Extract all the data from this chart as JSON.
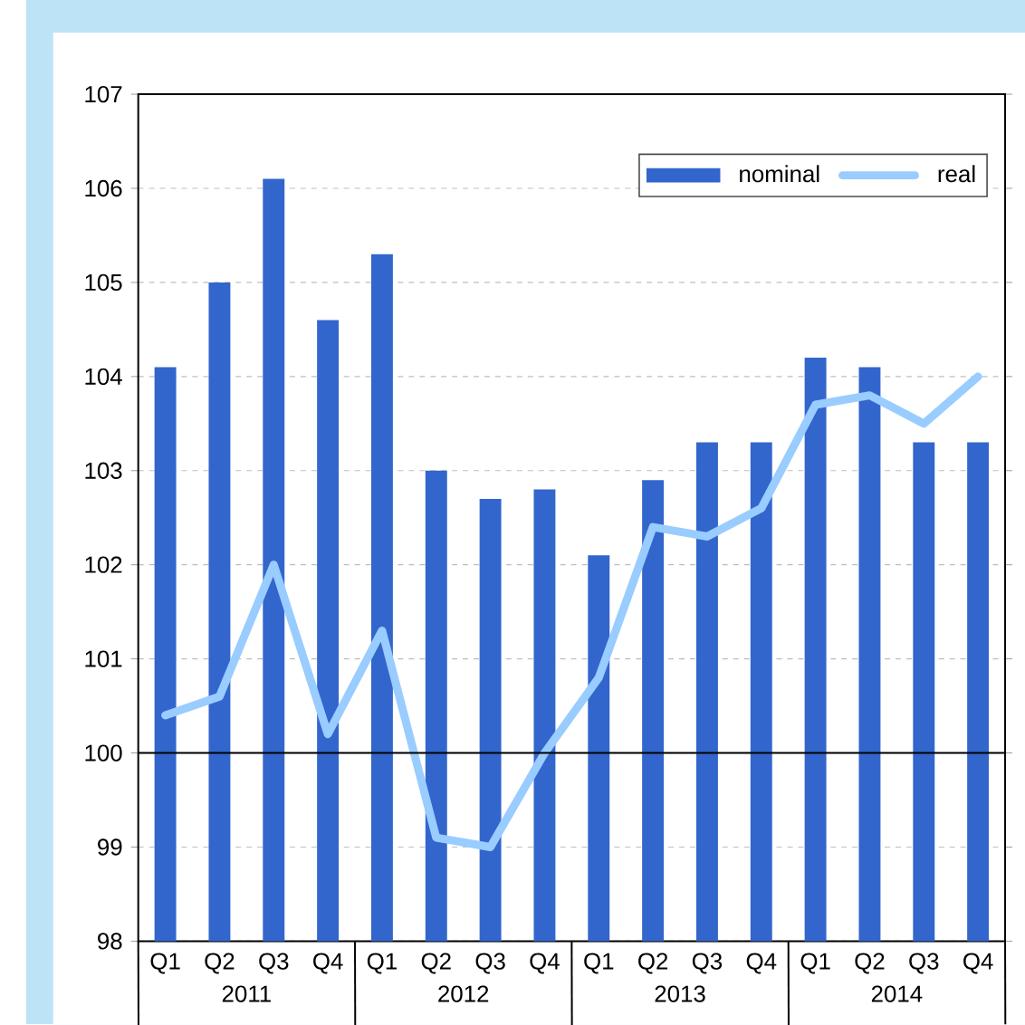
{
  "chart_data": {
    "type": "bar",
    "categories": [
      "Q1",
      "Q2",
      "Q3",
      "Q4",
      "Q1",
      "Q2",
      "Q3",
      "Q4",
      "Q1",
      "Q2",
      "Q3",
      "Q4",
      "Q1",
      "Q2",
      "Q3",
      "Q4"
    ],
    "annotations": [
      "2011",
      "2012",
      "2013",
      "2014"
    ],
    "series": [
      {
        "name": "nominal",
        "color": "#3366cc",
        "values": [
          104.1,
          105.0,
          106.1,
          104.6,
          105.3,
          103.0,
          102.7,
          102.8,
          102.1,
          102.9,
          103.3,
          103.3,
          104.2,
          104.1,
          103.3,
          103.3
        ]
      },
      {
        "name": "real",
        "type": "line",
        "color": "#99ccff",
        "values": [
          100.4,
          100.6,
          102.0,
          100.2,
          101.3,
          99.1,
          99.0,
          100.0,
          100.8,
          102.4,
          102.3,
          102.6,
          103.7,
          103.8,
          103.5,
          104.0
        ]
      }
    ],
    "ylim": [
      98,
      107
    ],
    "yticks": [
      98,
      99,
      100,
      101,
      102,
      103,
      104,
      105,
      106,
      107
    ],
    "grid": "y",
    "legend": "top right",
    "ref_lines": [
      {
        "axis": "y",
        "value": 100,
        "color": "#000000"
      }
    ]
  }
}
